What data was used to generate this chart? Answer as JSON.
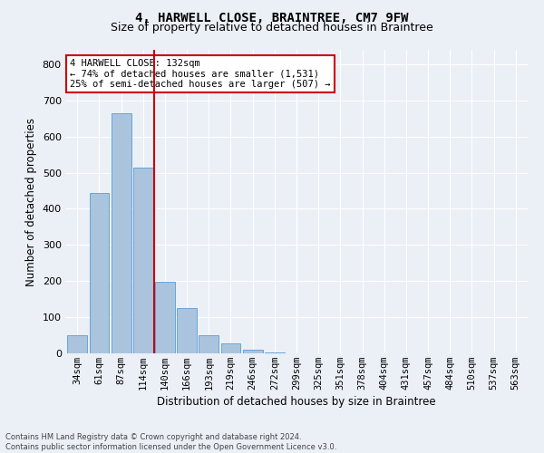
{
  "title_line1": "4, HARWELL CLOSE, BRAINTREE, CM7 9FW",
  "title_line2": "Size of property relative to detached houses in Braintree",
  "xlabel": "Distribution of detached houses by size in Braintree",
  "ylabel": "Number of detached properties",
  "footnote": "Contains HM Land Registry data © Crown copyright and database right 2024.\nContains public sector information licensed under the Open Government Licence v3.0.",
  "bar_labels": [
    "34sqm",
    "61sqm",
    "87sqm",
    "114sqm",
    "140sqm",
    "166sqm",
    "193sqm",
    "219sqm",
    "246sqm",
    "272sqm",
    "299sqm",
    "325sqm",
    "351sqm",
    "378sqm",
    "404sqm",
    "431sqm",
    "457sqm",
    "484sqm",
    "510sqm",
    "537sqm",
    "563sqm"
  ],
  "bar_values": [
    50,
    445,
    665,
    515,
    197,
    125,
    50,
    27,
    10,
    3,
    1,
    0,
    0,
    0,
    0,
    0,
    0,
    0,
    0,
    0,
    0
  ],
  "bar_color": "#aac4de",
  "bar_edge_color": "#5b9bd5",
  "background_color": "#eaf0f6",
  "grid_color": "#ffffff",
  "vline_color": "#cc0000",
  "annotation_text": "4 HARWELL CLOSE: 132sqm\n← 74% of detached houses are smaller (1,531)\n25% of semi-detached houses are larger (507) →",
  "annotation_box_facecolor": "#ffffff",
  "annotation_box_edge": "#cc0000",
  "ylim": [
    0,
    840
  ],
  "yticks": [
    0,
    100,
    200,
    300,
    400,
    500,
    600,
    700,
    800
  ],
  "title1_fontsize": 10,
  "title2_fontsize": 9,
  "ylabel_fontsize": 8.5,
  "xlabel_fontsize": 8.5,
  "tick_fontsize": 7.5,
  "annot_fontsize": 7.5,
  "footnote_fontsize": 6
}
